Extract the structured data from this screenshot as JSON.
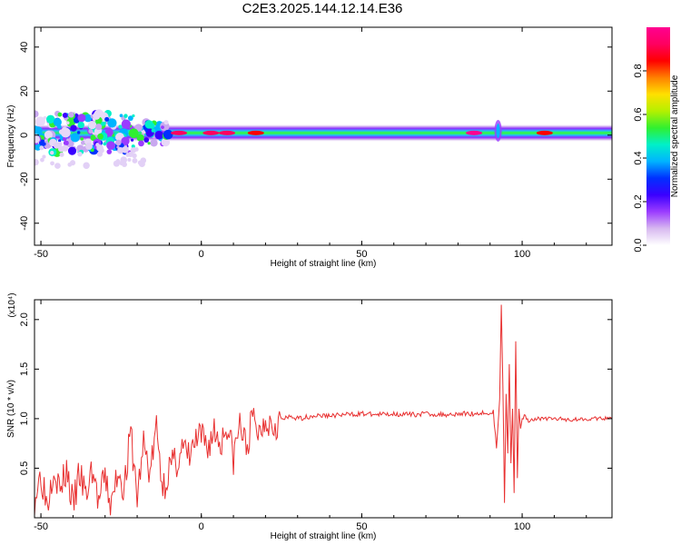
{
  "title": "C2E3.2025.144.12.14.E36",
  "colorbar": {
    "label": "Normalized spectral amplitude",
    "range": [
      0.0,
      1.0
    ],
    "ticks": [
      "0.0",
      "0.2",
      "0.4",
      "0.6",
      "0.8"
    ],
    "stops": [
      "#ffffff",
      "#d7b8f0",
      "#9b3cff",
      "#3a00ff",
      "#0030ff",
      "#00b4ff",
      "#00f0c8",
      "#30f030",
      "#b4f000",
      "#ffe000",
      "#ff8000",
      "#ff0000",
      "#ff0060",
      "#ff0090"
    ]
  },
  "chart_data": [
    {
      "type": "heatmap",
      "xlabel": "Height of straight line (km)",
      "ylabel": "Frequency (Hz)",
      "xlim": [
        -52,
        128
      ],
      "ylim": [
        -50,
        49
      ],
      "xticks": [
        -50,
        0,
        50,
        100
      ],
      "xtick_labels": [
        "-50",
        "0",
        "50",
        "100"
      ],
      "yticks": [
        -40,
        -20,
        0,
        20,
        40
      ],
      "ytick_labels": [
        "-40",
        "-20",
        "0",
        "20",
        "40"
      ],
      "band": {
        "center_frequency": 1,
        "half_width_frequency": 4,
        "x_range": [
          -52,
          128
        ]
      },
      "hotspots": [
        {
          "x": -7,
          "amplitude": 0.9
        },
        {
          "x": 3,
          "amplitude": 0.9
        },
        {
          "x": 8,
          "amplitude": 0.9
        },
        {
          "x": 17,
          "amplitude": 0.8
        },
        {
          "x": 85,
          "amplitude": 0.95
        },
        {
          "x": 107,
          "amplitude": 0.8
        }
      ]
    },
    {
      "type": "line",
      "xlabel": "Height of straight line (km)",
      "ylabel": "SNR (10 * v/v)",
      "y_multiplier_label": "(x10⁴)",
      "xlim": [
        -52,
        128
      ],
      "ylim": [
        0,
        2.2
      ],
      "xticks": [
        -50,
        0,
        50,
        100
      ],
      "xtick_labels": [
        "-50",
        "0",
        "50",
        "100"
      ],
      "yticks": [
        0.5,
        1.0,
        1.5,
        2.0
      ],
      "ytick_labels": [
        "0.5",
        "1.0",
        "1.5",
        "2.0"
      ],
      "color": "#e83030",
      "series": [
        {
          "x": [
            -52,
            -50,
            -48,
            -46,
            -44,
            -42,
            -40,
            -38,
            -36,
            -34,
            -32,
            -30,
            -28,
            -26,
            -24,
            -22,
            -20,
            -18,
            -16,
            -14,
            -12,
            -10,
            -8,
            -6,
            -4,
            -2,
            0,
            2,
            4,
            6,
            8,
            10,
            12,
            14,
            16,
            18,
            20,
            22,
            24,
            26,
            28,
            30,
            35,
            40,
            45,
            50,
            55,
            60,
            65,
            70,
            75,
            80,
            85,
            88,
            90,
            91,
            92,
            93,
            93.5,
            94,
            94.5,
            95,
            95.5,
            96,
            96.5,
            97,
            97.5,
            98,
            98.5,
            99,
            99.5,
            100,
            101,
            102,
            104,
            106,
            110,
            115,
            120,
            125,
            128
          ],
          "y": [
            0.2,
            0.45,
            0.15,
            0.55,
            0.25,
            0.5,
            0.1,
            0.45,
            0.2,
            0.5,
            0.15,
            0.4,
            0.1,
            0.5,
            0.3,
            0.85,
            0.2,
            0.75,
            0.45,
            0.9,
            0.3,
            0.5,
            0.55,
            0.7,
            0.6,
            0.75,
            0.8,
            0.72,
            0.88,
            0.75,
            0.95,
            0.6,
            0.95,
            0.7,
            1.0,
            0.85,
            1.02,
            0.95,
            0.98,
            1.0,
            1.02,
            1.0,
            1.03,
            1.03,
            1.04,
            1.05,
            1.04,
            1.05,
            1.04,
            1.05,
            1.04,
            1.05,
            1.05,
            1.06,
            1.04,
            1.08,
            0.7,
            1.2,
            2.15,
            1.3,
            0.15,
            1.25,
            0.65,
            1.55,
            0.55,
            1.1,
            0.25,
            1.78,
            0.4,
            1.1,
            0.9,
            1.0,
            1.03,
            0.98,
            1.0,
            1.0,
            1.0,
            0.99,
            1.0,
            1.0,
            1.0
          ]
        }
      ]
    }
  ]
}
